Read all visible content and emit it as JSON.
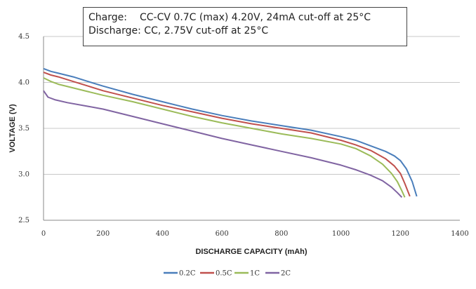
{
  "note": {
    "charge_label": "Charge:",
    "charge_text": "CC-CV 0.7C (max) 4.20V, 24mA cut-off at 25°C",
    "discharge_label": "Discharge:",
    "discharge_text": "CC, 2.75V cut-off at 25°C"
  },
  "chart_data": {
    "type": "line",
    "title": "",
    "xlabel": "DISCHARGE CAPACITY (mAh)",
    "ylabel": "VOLTAGE (V)",
    "xlim": [
      0,
      1400
    ],
    "ylim": [
      2.5,
      4.5
    ],
    "xticks": [
      "0",
      "200",
      "400",
      "600",
      "800",
      "1000",
      "1200",
      "1400"
    ],
    "yticks": [
      "2.5",
      "3.0",
      "3.5",
      "4.0",
      "4.5"
    ],
    "grid": true,
    "legend_position": "bottom",
    "series": [
      {
        "name": "0.2C",
        "color": "#4a7ebb",
        "x": [
          0,
          25,
          50,
          100,
          150,
          200,
          300,
          400,
          500,
          600,
          700,
          800,
          900,
          1000,
          1050,
          1100,
          1150,
          1180,
          1200,
          1220,
          1240,
          1255
        ],
        "y": [
          4.15,
          4.12,
          4.1,
          4.06,
          4.01,
          3.96,
          3.87,
          3.79,
          3.71,
          3.64,
          3.58,
          3.53,
          3.48,
          3.41,
          3.37,
          3.31,
          3.25,
          3.2,
          3.15,
          3.06,
          2.92,
          2.76
        ]
      },
      {
        "name": "0.5C",
        "color": "#c0504d",
        "x": [
          0,
          25,
          50,
          100,
          150,
          200,
          300,
          400,
          500,
          600,
          700,
          800,
          900,
          1000,
          1050,
          1100,
          1150,
          1180,
          1200,
          1215,
          1232
        ],
        "y": [
          4.11,
          4.08,
          4.06,
          4.01,
          3.96,
          3.91,
          3.83,
          3.75,
          3.68,
          3.61,
          3.55,
          3.5,
          3.45,
          3.37,
          3.32,
          3.26,
          3.17,
          3.09,
          3.01,
          2.9,
          2.76
        ]
      },
      {
        "name": "1C",
        "color": "#9bbb59",
        "x": [
          0,
          25,
          50,
          100,
          150,
          200,
          300,
          400,
          500,
          600,
          700,
          800,
          900,
          1000,
          1050,
          1100,
          1140,
          1170,
          1190,
          1205,
          1215
        ],
        "y": [
          4.05,
          4.01,
          3.98,
          3.94,
          3.9,
          3.86,
          3.79,
          3.71,
          3.63,
          3.56,
          3.5,
          3.44,
          3.39,
          3.33,
          3.28,
          3.2,
          3.11,
          3.01,
          2.92,
          2.82,
          2.75
        ]
      },
      {
        "name": "2C",
        "color": "#8064a2",
        "x": [
          0,
          15,
          40,
          80,
          150,
          200,
          300,
          400,
          500,
          600,
          700,
          800,
          900,
          1000,
          1050,
          1100,
          1140,
          1170,
          1190,
          1205
        ],
        "y": [
          3.91,
          3.84,
          3.81,
          3.78,
          3.74,
          3.71,
          3.63,
          3.55,
          3.47,
          3.39,
          3.32,
          3.25,
          3.18,
          3.1,
          3.05,
          2.99,
          2.93,
          2.86,
          2.8,
          2.75
        ]
      }
    ]
  }
}
